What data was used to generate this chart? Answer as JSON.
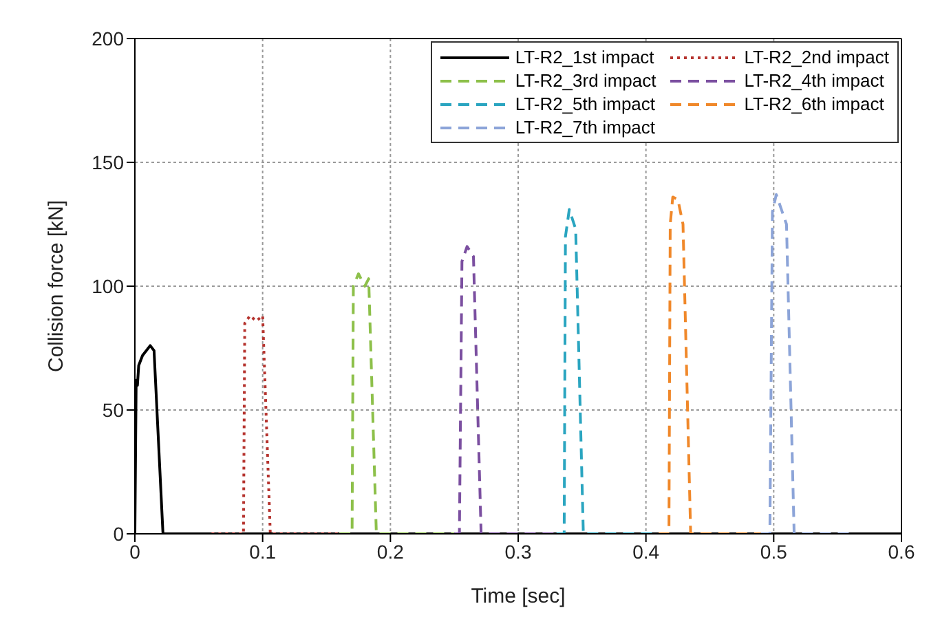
{
  "chart_data": {
    "type": "line",
    "xlabel": "Time [sec]",
    "ylabel": "Collision force [kN]",
    "xlim": [
      0,
      0.6
    ],
    "xticks": [
      0,
      0.1,
      0.2,
      0.3,
      0.4,
      0.5,
      0.6
    ],
    "ylim": [
      0,
      200
    ],
    "yticks": [
      0,
      50,
      100,
      150,
      200
    ],
    "grid": true,
    "legend": "top right",
    "marker": "none",
    "series": [
      {
        "name": "LT-R2_1st impact",
        "color": "#000000",
        "line_style": "solid",
        "x": [
          0,
          0.001,
          0.002,
          0.003,
          0.006,
          0.012,
          0.015,
          0.022,
          0.6
        ],
        "values": [
          0,
          62,
          60,
          68,
          72,
          76,
          74,
          0,
          0
        ]
      },
      {
        "name": "LT-R2_2nd impact",
        "color": "#b5332e",
        "line_style": "dotted",
        "x": [
          0.06,
          0.085,
          0.086,
          0.09,
          0.095,
          0.1,
          0.106,
          0.16
        ],
        "values": [
          0,
          0,
          85,
          88,
          86,
          88,
          0,
          0
        ]
      },
      {
        "name": "LT-R2_3rd impact",
        "color": "#8dc04a",
        "line_style": "dashed",
        "x": [
          0.16,
          0.17,
          0.171,
          0.175,
          0.18,
          0.183,
          0.189,
          0.25
        ],
        "values": [
          0,
          0,
          100,
          105,
          100,
          103,
          0,
          0
        ]
      },
      {
        "name": "LT-R2_4th impact",
        "color": "#7b4fa0",
        "line_style": "dashed",
        "x": [
          0.25,
          0.254,
          0.256,
          0.26,
          0.265,
          0.271,
          0.33
        ],
        "values": [
          0,
          0,
          110,
          116,
          112,
          0,
          0
        ]
      },
      {
        "name": "LT-R2_5th impact",
        "color": "#2aa5c0",
        "line_style": "dashed",
        "x": [
          0.33,
          0.336,
          0.337,
          0.34,
          0.345,
          0.351,
          0.41
        ],
        "values": [
          0,
          0,
          120,
          131,
          123,
          0,
          0
        ]
      },
      {
        "name": "LT-R2_6th impact",
        "color": "#f0882a",
        "line_style": "dashed",
        "x": [
          0.41,
          0.418,
          0.419,
          0.421,
          0.425,
          0.429,
          0.435,
          0.49
        ],
        "values": [
          0,
          0,
          125,
          136,
          135,
          125,
          0,
          0
        ]
      },
      {
        "name": "LT-R2_7th impact",
        "color": "#8ca4d8",
        "line_style": "dashed",
        "x": [
          0.49,
          0.497,
          0.499,
          0.502,
          0.51,
          0.516,
          0.56
        ],
        "values": [
          0,
          0,
          130,
          137,
          125,
          0,
          0
        ]
      }
    ]
  }
}
